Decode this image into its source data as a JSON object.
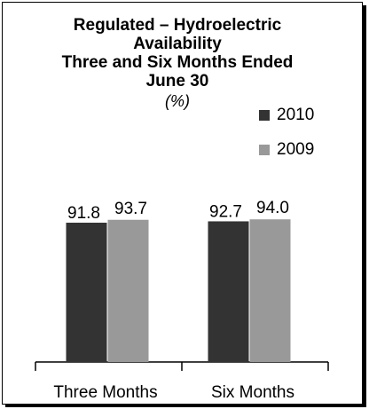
{
  "chart_data": {
    "type": "bar",
    "title_lines": [
      "Regulated  –  Hydroelectric",
      "Availability",
      "Three and Six Months Ended",
      "June 30"
    ],
    "units_label": "(%)",
    "categories": [
      "Three Months",
      "Six Months"
    ],
    "series": [
      {
        "name": "2010",
        "color": "#333333",
        "values": [
          91.8,
          92.7
        ]
      },
      {
        "name": "2009",
        "color": "#999999",
        "values": [
          93.7,
          94.0
        ]
      }
    ],
    "data_labels": [
      [
        "91.8",
        "92.7"
      ],
      [
        "93.7",
        "94.0"
      ]
    ],
    "legend": {
      "position": "top-right"
    },
    "grid": false
  }
}
